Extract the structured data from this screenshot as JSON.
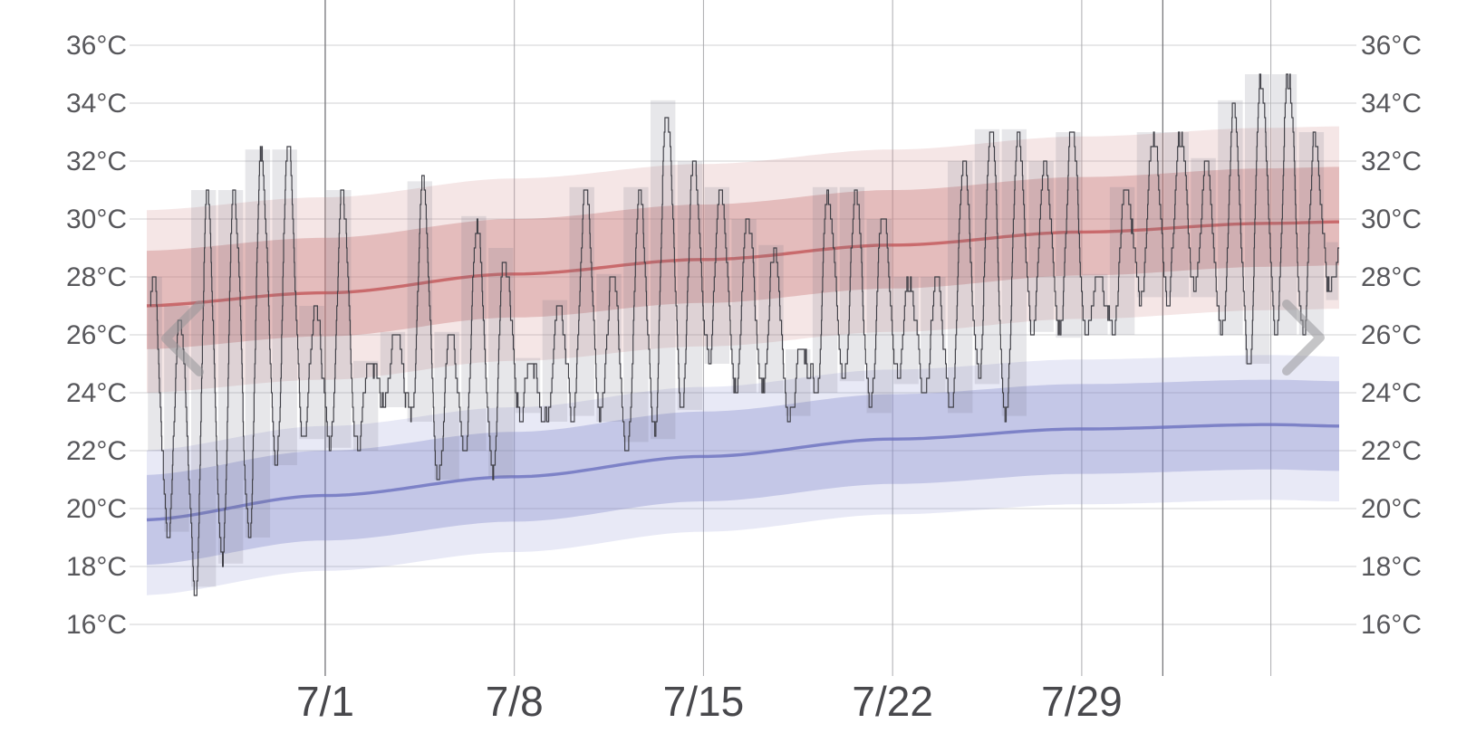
{
  "chart_data": {
    "type": "line",
    "title": "",
    "xlabel": "",
    "ylabel": "",
    "y_unit": "°C",
    "ylim": [
      16,
      36
    ],
    "y_ticks": [
      {
        "value": 36,
        "label": "36°C"
      },
      {
        "value": 34,
        "label": "34°C"
      },
      {
        "value": 32,
        "label": "32°C"
      },
      {
        "value": 30,
        "label": "30°C"
      },
      {
        "value": 28,
        "label": "28°C"
      },
      {
        "value": 26,
        "label": "26°C"
      },
      {
        "value": 24,
        "label": "24°C"
      },
      {
        "value": 22,
        "label": "22°C"
      },
      {
        "value": 20,
        "label": "20°C"
      },
      {
        "value": 18,
        "label": "18°C"
      },
      {
        "value": 16,
        "label": "16°C"
      }
    ],
    "y_axis_both_sides": true,
    "x_ticks": [
      {
        "day": 7,
        "label": "7/1"
      },
      {
        "day": 14,
        "label": "7/8"
      },
      {
        "day": 21,
        "label": "7/15"
      },
      {
        "day": 28,
        "label": "7/22"
      },
      {
        "day": 35,
        "label": "7/29"
      }
    ],
    "x_minor_gridline_days": [
      7,
      14,
      21,
      28,
      35,
      42
    ],
    "x_month_gridline_days": [
      7,
      38
    ],
    "grid": true,
    "legend": "none",
    "series": [
      {
        "name": "observed-daily-range",
        "type": "bar",
        "daily": [
          {
            "date": "6/24",
            "low": 22.0,
            "high": 28.0
          },
          {
            "date": "6/25",
            "low": 19.2,
            "high": 27.0
          },
          {
            "date": "6/26",
            "low": 17.3,
            "high": 31.0
          },
          {
            "date": "6/27",
            "low": 18.1,
            "high": 31.0
          },
          {
            "date": "6/28",
            "low": 19.0,
            "high": 32.4
          },
          {
            "date": "6/29",
            "low": 21.5,
            "high": 32.4
          },
          {
            "date": "6/30",
            "low": 22.4,
            "high": 27.0
          },
          {
            "date": "7/1",
            "low": 22.1,
            "high": 31.0
          },
          {
            "date": "7/2",
            "low": 22.0,
            "high": 25.1
          },
          {
            "date": "7/3",
            "low": 23.5,
            "high": 26.1
          },
          {
            "date": "7/4",
            "low": 23.0,
            "high": 31.3
          },
          {
            "date": "7/5",
            "low": 21.0,
            "high": 26.1
          },
          {
            "date": "7/6",
            "low": 22.0,
            "high": 30.1
          },
          {
            "date": "7/7",
            "low": 21.1,
            "high": 29.0
          },
          {
            "date": "7/8",
            "low": 23.3,
            "high": 25.2
          },
          {
            "date": "7/9",
            "low": 23.0,
            "high": 27.2
          },
          {
            "date": "7/10",
            "low": 23.2,
            "high": 31.1
          },
          {
            "date": "7/11",
            "low": 23.0,
            "high": 28.1
          },
          {
            "date": "7/12",
            "low": 22.3,
            "high": 31.1
          },
          {
            "date": "7/13",
            "low": 22.4,
            "high": 34.1
          },
          {
            "date": "7/14",
            "low": 23.4,
            "high": 32.0
          },
          {
            "date": "7/15",
            "low": 25.0,
            "high": 31.1
          },
          {
            "date": "7/16",
            "low": 24.0,
            "high": 30.0
          },
          {
            "date": "7/17",
            "low": 24.0,
            "high": 29.1
          },
          {
            "date": "7/18",
            "low": 23.2,
            "high": 25.5
          },
          {
            "date": "7/19",
            "low": 24.0,
            "high": 31.1
          },
          {
            "date": "7/20",
            "low": 24.4,
            "high": 31.1
          },
          {
            "date": "7/21",
            "low": 23.3,
            "high": 30.0
          },
          {
            "date": "7/22",
            "low": 24.3,
            "high": 28.0
          },
          {
            "date": "7/23",
            "low": 24.0,
            "high": 28.0
          },
          {
            "date": "7/24",
            "low": 23.3,
            "high": 32.0
          },
          {
            "date": "7/25",
            "low": 24.3,
            "high": 33.1
          },
          {
            "date": "7/26",
            "low": 23.2,
            "high": 33.1
          },
          {
            "date": "7/27",
            "low": 26.1,
            "high": 32.0
          },
          {
            "date": "7/28",
            "low": 25.9,
            "high": 33.0
          },
          {
            "date": "7/29",
            "low": 26.0,
            "high": 28.1
          },
          {
            "date": "7/30",
            "low": 26.0,
            "high": 31.1
          },
          {
            "date": "7/31",
            "low": 27.3,
            "high": 33.0
          },
          {
            "date": "8/1",
            "low": 27.3,
            "high": 33.0
          },
          {
            "date": "8/2",
            "low": 27.3,
            "high": 32.1
          },
          {
            "date": "8/3",
            "low": 26.0,
            "high": 34.1
          },
          {
            "date": "8/4",
            "low": 25.0,
            "high": 35.0
          },
          {
            "date": "8/5",
            "low": 26.0,
            "high": 35.0
          },
          {
            "date": "8/6",
            "low": 26.0,
            "high": 33.0
          },
          {
            "date": "8/7",
            "low": 27.2,
            "high": 29.2
          }
        ]
      },
      {
        "name": "observed-hourly-temperature",
        "type": "step-line",
        "note": "hourly observations oscillating between each day's low (early morning) and high (mid afternoon)"
      },
      {
        "name": "average-high",
        "type": "line-with-bands",
        "anchors": [
          [
            0,
            27.0
          ],
          [
            7,
            27.45
          ],
          [
            14,
            28.1
          ],
          [
            21,
            28.6
          ],
          [
            28,
            29.1
          ],
          [
            35,
            29.55
          ],
          [
            42,
            29.85
          ],
          [
            44.6,
            29.9
          ]
        ],
        "band_inner_above": 1.9,
        "band_inner_below": 1.5,
        "band_outer_above": 3.3,
        "band_outer_below": 3.0
      },
      {
        "name": "average-low",
        "type": "line-with-bands",
        "anchors": [
          [
            0,
            19.6
          ],
          [
            7,
            20.45
          ],
          [
            14,
            21.1
          ],
          [
            21,
            21.8
          ],
          [
            28,
            22.4
          ],
          [
            35,
            22.75
          ],
          [
            42,
            22.9
          ],
          [
            44.6,
            22.85
          ]
        ],
        "band_inner_above": 1.55,
        "band_inner_below": 1.55,
        "band_outer_above": 2.4,
        "band_outer_below": 2.6
      }
    ],
    "colors": {
      "avg_high_line": "rgba(194,85,88,0.8)",
      "avg_high_band_inner": "rgba(200,120,122,0.38)",
      "avg_high_band_outer": "rgba(205,130,132,0.20)",
      "avg_low_line": "rgba(105,110,190,0.78)",
      "avg_low_band_inner": "rgba(125,130,200,0.33)",
      "avg_low_band_outer": "rgba(130,135,205,0.18)",
      "observed_bar": "rgba(112,112,128,0.17)",
      "observed_line": "#3f3f46",
      "grid_horizontal": "#dadadc",
      "grid_vertical_minor": "#ababaf",
      "grid_vertical_month": "#77777b",
      "y_label": "#57575b",
      "x_label": "#48484c",
      "nav_chevron": "rgba(150,150,153,0.55)"
    },
    "nav": {
      "prev_icon": "chevron-left",
      "next_icon": "chevron-right"
    }
  }
}
